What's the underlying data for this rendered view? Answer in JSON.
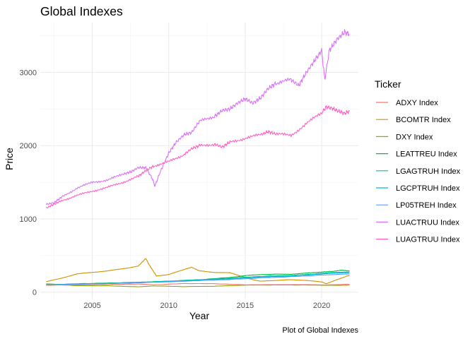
{
  "chart_data": {
    "type": "line",
    "title": "Global Indexes",
    "caption": "Plot of Global Indexes",
    "xlabel": "Year",
    "ylabel": "Price",
    "xlim": [
      2001.6,
      2022.4
    ],
    "ylim": [
      -90,
      3680
    ],
    "x_ticks": [
      2005,
      2010,
      2015,
      2020
    ],
    "y_ticks": [
      0,
      1000,
      2000,
      3000
    ],
    "grid": true,
    "legend_title": "Ticker",
    "legend_position": "right",
    "series": [
      {
        "name": "ADXY Index",
        "color": "#F8766D",
        "x": [
          2002.0,
          2004.0,
          2006.0,
          2008.0,
          2009.0,
          2011.0,
          2013.0,
          2015.0,
          2017.0,
          2019.0,
          2020.2,
          2021.8
        ],
        "y": [
          95,
          98,
          105,
          112,
          100,
          118,
          115,
          100,
          102,
          103,
          98,
          108
        ]
      },
      {
        "name": "BCOMTR Index",
        "color": "#D39200",
        "x": [
          2002.0,
          2003.0,
          2004.0,
          2005.0,
          2006.0,
          2007.0,
          2008.0,
          2008.5,
          2008.7,
          2009.2,
          2010.0,
          2011.0,
          2011.5,
          2012.0,
          2013.0,
          2014.0,
          2014.7,
          2015.5,
          2016.0,
          2017.0,
          2018.0,
          2019.0,
          2020.0,
          2020.3,
          2021.0,
          2021.8
        ],
        "y": [
          145,
          190,
          250,
          270,
          290,
          320,
          355,
          460,
          380,
          220,
          240,
          310,
          340,
          290,
          270,
          265,
          220,
          170,
          150,
          160,
          170,
          160,
          140,
          115,
          170,
          230
        ]
      },
      {
        "name": "DXY Index",
        "color": "#93AA00",
        "x": [
          2002.0,
          2004.0,
          2006.0,
          2008.0,
          2009.0,
          2011.0,
          2013.0,
          2015.0,
          2017.0,
          2019.0,
          2021.0,
          2021.8
        ],
        "y": [
          115,
          88,
          87,
          73,
          85,
          76,
          81,
          96,
          98,
          97,
          92,
          95
        ]
      },
      {
        "name": "LEATTREU Index",
        "color": "#00BA38",
        "x": [
          2002.0,
          2004.0,
          2006.0,
          2008.0,
          2010.0,
          2012.0,
          2014.0,
          2015.0,
          2016.0,
          2017.0,
          2018.0,
          2019.0,
          2020.0,
          2020.8,
          2021.3,
          2021.8
        ],
        "y": [
          100,
          115,
          125,
          135,
          150,
          170,
          200,
          225,
          240,
          245,
          245,
          260,
          275,
          285,
          300,
          290
        ]
      },
      {
        "name": "LGAGTRUH Index",
        "color": "#00C19F",
        "x": [
          2002.0,
          2004.0,
          2006.0,
          2008.0,
          2010.0,
          2012.0,
          2014.0,
          2016.0,
          2018.0,
          2019.0,
          2020.0,
          2021.0,
          2021.8
        ],
        "y": [
          100,
          112,
          122,
          135,
          150,
          170,
          190,
          215,
          228,
          240,
          258,
          270,
          275
        ]
      },
      {
        "name": "LGCPTRUH Index",
        "color": "#00B9E3",
        "x": [
          2002.0,
          2004.0,
          2006.0,
          2008.0,
          2010.0,
          2012.0,
          2014.0,
          2016.0,
          2018.0,
          2020.0,
          2021.0,
          2021.8
        ],
        "y": [
          100,
          110,
          118,
          128,
          145,
          165,
          180,
          205,
          220,
          248,
          262,
          265
        ]
      },
      {
        "name": "LP05TREH Index",
        "color": "#619CFF",
        "x": [
          2002.0,
          2004.0,
          2006.0,
          2008.0,
          2010.0,
          2012.0,
          2014.0,
          2016.0,
          2018.0,
          2020.0,
          2021.0,
          2021.8
        ],
        "y": [
          100,
          108,
          116,
          128,
          140,
          158,
          172,
          195,
          210,
          232,
          243,
          248
        ]
      },
      {
        "name": "LUACTRUU Index",
        "color": "#DB72FB",
        "x": [
          2002.0,
          2002.5,
          2003.0,
          2004.0,
          2005.0,
          2006.0,
          2007.0,
          2007.5,
          2008.0,
          2008.5,
          2008.9,
          2009.1,
          2009.4,
          2010.0,
          2010.5,
          2011.0,
          2011.5,
          2012.0,
          2013.0,
          2013.5,
          2014.0,
          2014.5,
          2015.0,
          2015.5,
          2016.0,
          2016.5,
          2017.0,
          2018.0,
          2018.5,
          2019.0,
          2019.5,
          2020.0,
          2020.2,
          2020.5,
          2021.0,
          2021.5,
          2021.8
        ],
        "y": [
          1200,
          1220,
          1300,
          1420,
          1500,
          1530,
          1610,
          1640,
          1700,
          1700,
          1560,
          1450,
          1620,
          1900,
          2050,
          2150,
          2180,
          2330,
          2400,
          2480,
          2500,
          2580,
          2640,
          2580,
          2650,
          2780,
          2850,
          2900,
          2820,
          3000,
          3150,
          3300,
          2900,
          3300,
          3450,
          3550,
          3520
        ]
      },
      {
        "name": "LUAGTRUU Index",
        "color": "#FF61C3",
        "x": [
          2002.0,
          2002.5,
          2003.0,
          2004.0,
          2005.0,
          2006.0,
          2007.0,
          2008.0,
          2008.5,
          2009.0,
          2010.0,
          2011.0,
          2011.5,
          2012.0,
          2013.0,
          2013.5,
          2014.0,
          2015.0,
          2016.0,
          2016.5,
          2017.0,
          2018.0,
          2019.0,
          2020.0,
          2020.3,
          2020.7,
          2021.0,
          2021.5,
          2021.8
        ],
        "y": [
          1150,
          1200,
          1250,
          1320,
          1380,
          1430,
          1500,
          1580,
          1660,
          1720,
          1780,
          1880,
          1960,
          2000,
          2020,
          1980,
          2050,
          2100,
          2150,
          2190,
          2160,
          2140,
          2300,
          2450,
          2530,
          2510,
          2480,
          2440,
          2470
        ]
      }
    ]
  }
}
